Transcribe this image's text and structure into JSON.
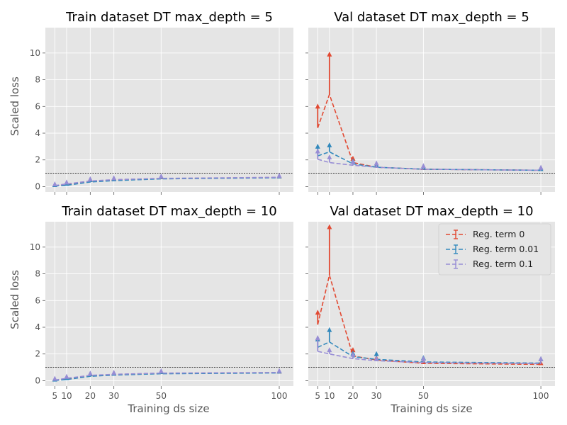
{
  "figure": {
    "ylabel": "Scaled loss",
    "xlabel": "Training ds size"
  },
  "colors": {
    "panel_bg": "#E5E5E5",
    "grid": "#FFFFFF",
    "tick_text": "#555555",
    "title_text": "#000000",
    "reference_line": "#000000"
  },
  "legend": {
    "entries": [
      "Reg. term 0",
      "Reg. term 0.01",
      "Reg. term 0.1"
    ]
  },
  "chart_data": [
    {
      "type": "line",
      "title": "Train dataset DT max_depth = 5",
      "xlabel": "",
      "ylabel": "Scaled loss",
      "x": [
        5,
        10,
        20,
        30,
        50,
        100
      ],
      "xlim": [
        1,
        106
      ],
      "ylim": [
        -0.4,
        11.9
      ],
      "xticks": [
        5,
        10,
        20,
        30,
        50,
        100
      ],
      "yticks": [
        0,
        2,
        4,
        6,
        8,
        10
      ],
      "grid": true,
      "reference_line_y": 1.0,
      "series": [
        {
          "name": "Reg. term 0",
          "color": "#E24A33",
          "values": [
            0.05,
            0.15,
            0.4,
            0.5,
            0.6,
            0.68
          ],
          "err_upper": [
            0.08,
            0.12,
            0.12,
            0.1,
            0.12,
            0.1
          ]
        },
        {
          "name": "Reg. term 0.01",
          "color": "#348ABD",
          "values": [
            0.05,
            0.1,
            0.35,
            0.45,
            0.58,
            0.66
          ],
          "err_upper": [
            0.08,
            0.12,
            0.15,
            0.12,
            0.15,
            0.12
          ]
        },
        {
          "name": "Reg. term 0.1",
          "color": "#988ED5",
          "values": [
            0.08,
            0.2,
            0.42,
            0.52,
            0.62,
            0.7
          ],
          "err_upper": [
            0.1,
            0.12,
            0.15,
            0.12,
            0.15,
            0.12
          ]
        }
      ]
    },
    {
      "type": "line",
      "title": "Val dataset DT max_depth = 5",
      "xlabel": "",
      "ylabel": "",
      "x": [
        5,
        10,
        20,
        30,
        50,
        100
      ],
      "xlim": [
        1,
        106
      ],
      "ylim": [
        -0.4,
        11.9
      ],
      "xticks": [
        5,
        10,
        20,
        30,
        50,
        100
      ],
      "yticks": [
        0,
        2,
        4,
        6,
        8,
        10
      ],
      "grid": true,
      "reference_line_y": 1.0,
      "series": [
        {
          "name": "Reg. term 0",
          "color": "#E24A33",
          "values": [
            4.4,
            6.9,
            1.8,
            1.45,
            1.3,
            1.22
          ],
          "err_upper": [
            1.6,
            3.0,
            0.3,
            0.15,
            0.1,
            0.1
          ]
        },
        {
          "name": "Reg. term 0.01",
          "color": "#348ABD",
          "values": [
            2.3,
            2.6,
            1.7,
            1.45,
            1.3,
            1.22
          ],
          "err_upper": [
            0.7,
            0.5,
            0.2,
            0.15,
            0.15,
            0.1
          ]
        },
        {
          "name": "Reg. term 0.1",
          "color": "#988ED5",
          "values": [
            2.05,
            1.8,
            1.6,
            1.45,
            1.3,
            1.22
          ],
          "err_upper": [
            0.6,
            0.4,
            0.25,
            0.3,
            0.25,
            0.2
          ]
        }
      ]
    },
    {
      "type": "line",
      "title": "Train dataset DT max_depth = 10",
      "xlabel": "Training ds size",
      "ylabel": "Scaled loss",
      "x": [
        5,
        10,
        20,
        30,
        50,
        100
      ],
      "xlim": [
        1,
        106
      ],
      "ylim": [
        -0.4,
        11.9
      ],
      "xticks": [
        5,
        10,
        20,
        30,
        50,
        100
      ],
      "yticks": [
        0,
        2,
        4,
        6,
        8,
        10
      ],
      "grid": true,
      "reference_line_y": 1.0,
      "series": [
        {
          "name": "Reg. term 0",
          "color": "#E24A33",
          "values": [
            0.03,
            0.12,
            0.38,
            0.45,
            0.55,
            0.6
          ],
          "err_upper": [
            0.08,
            0.12,
            0.12,
            0.12,
            0.12,
            0.1
          ]
        },
        {
          "name": "Reg. term 0.01",
          "color": "#348ABD",
          "values": [
            0.02,
            0.08,
            0.33,
            0.42,
            0.52,
            0.58
          ],
          "err_upper": [
            0.08,
            0.12,
            0.15,
            0.12,
            0.15,
            0.12
          ]
        },
        {
          "name": "Reg. term 0.1",
          "color": "#988ED5",
          "values": [
            0.05,
            0.18,
            0.4,
            0.48,
            0.57,
            0.62
          ],
          "err_upper": [
            0.1,
            0.12,
            0.15,
            0.12,
            0.15,
            0.12
          ]
        }
      ]
    },
    {
      "type": "line",
      "title": "Val dataset DT max_depth = 10",
      "xlabel": "Training ds size",
      "ylabel": "",
      "x": [
        5,
        10,
        20,
        30,
        50,
        100
      ],
      "xlim": [
        1,
        106
      ],
      "ylim": [
        -0.4,
        11.9
      ],
      "xticks": [
        5,
        10,
        20,
        30,
        50,
        100
      ],
      "yticks": [
        0,
        2,
        4,
        6,
        8,
        10
      ],
      "grid": true,
      "reference_line_y": 1.0,
      "legend_position": "top-right",
      "series": [
        {
          "name": "Reg. term 0",
          "color": "#E24A33",
          "values": [
            4.2,
            7.9,
            1.85,
            1.55,
            1.3,
            1.22
          ],
          "err_upper": [
            0.9,
            3.6,
            0.45,
            0.15,
            0.1,
            0.1
          ]
        },
        {
          "name": "Reg. term 0.01",
          "color": "#348ABD",
          "values": [
            2.5,
            2.9,
            1.8,
            1.6,
            1.4,
            1.32
          ],
          "err_upper": [
            0.6,
            0.9,
            0.25,
            0.4,
            0.3,
            0.3
          ]
        },
        {
          "name": "Reg. term 0.1",
          "color": "#988ED5",
          "values": [
            2.2,
            2.0,
            1.65,
            1.5,
            1.35,
            1.28
          ],
          "err_upper": [
            1.0,
            0.3,
            0.3,
            0.15,
            0.3,
            0.35
          ]
        }
      ]
    }
  ]
}
